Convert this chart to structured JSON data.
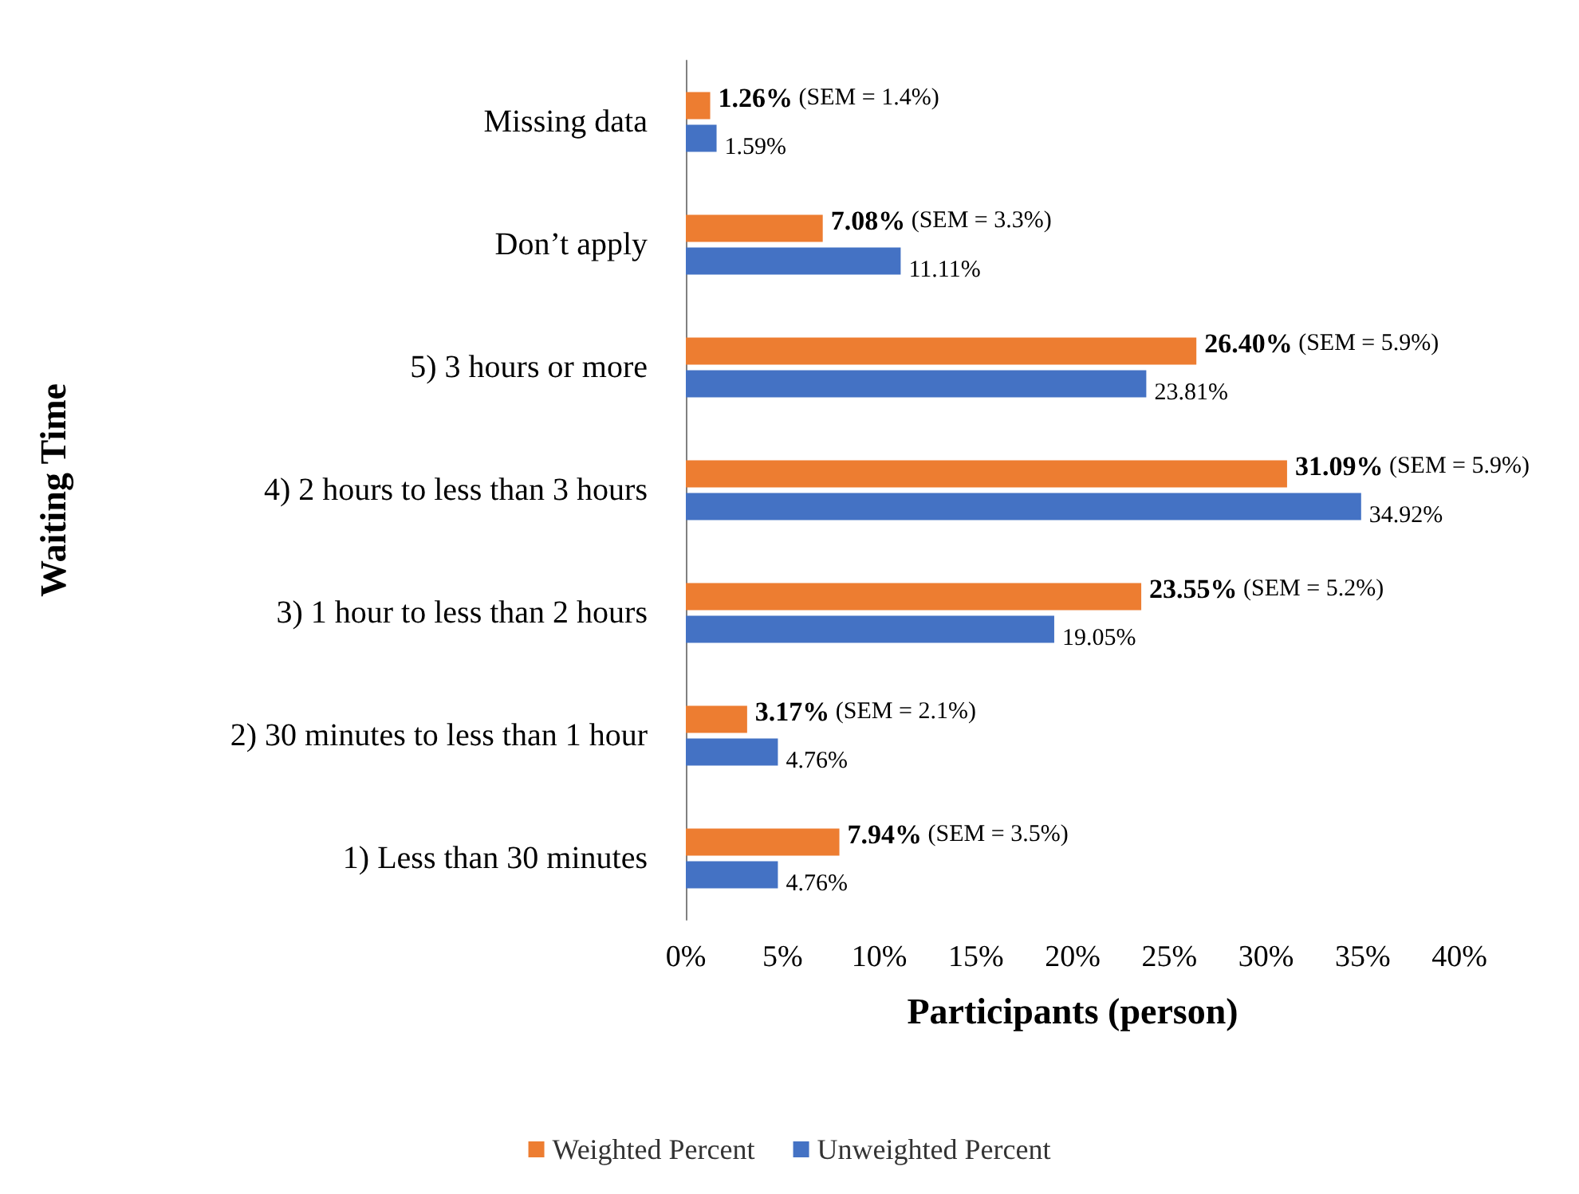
{
  "chart_data": {
    "type": "bar",
    "orientation": "horizontal",
    "xlabel": "Participants (person)",
    "ylabel": "Waiting Time",
    "categories": [
      "Missing data",
      "Don’t apply",
      "5) 3 hours or more",
      "4) 2 hours to less than 3 hours",
      "3) 1 hour to less than 2 hours",
      "2) 30 minutes to less than 1 hour",
      "1) Less than 30 minutes"
    ],
    "series": [
      {
        "name": "Weighted Percent",
        "color": "#ed7d31",
        "values": [
          1.26,
          7.08,
          26.4,
          31.09,
          23.55,
          3.17,
          7.94
        ],
        "value_labels": [
          "1.26% (SEM = 1.4%)",
          "7.08% (SEM = 3.3%)",
          "26.40% (SEM = 5.9%)",
          "31.09% (SEM = 5.9%)",
          "23.55% (SEM = 5.2%)",
          "3.17% (SEM = 2.1%)",
          "7.94% (SEM = 3.5%)"
        ]
      },
      {
        "name": "Unweighted Percent",
        "color": "#4472c4",
        "values": [
          1.59,
          11.11,
          23.81,
          34.92,
          19.05,
          4.76,
          4.76
        ],
        "value_labels": [
          "1.59%",
          "11.11%",
          "23.81%",
          "34.92%",
          "19.05%",
          "4.76%",
          "4.76%"
        ]
      }
    ],
    "xlim": [
      0,
      40
    ],
    "xticks": [
      {
        "value": 0,
        "label": "0%"
      },
      {
        "value": 5,
        "label": "5%"
      },
      {
        "value": 10,
        "label": "10%"
      },
      {
        "value": 15,
        "label": "15%"
      },
      {
        "value": 20,
        "label": "20%"
      },
      {
        "value": 25,
        "label": "25%"
      },
      {
        "value": 30,
        "label": "30%"
      },
      {
        "value": 35,
        "label": "35%"
      },
      {
        "value": 40,
        "label": "40%"
      }
    ],
    "grid": false,
    "legend": "bottom"
  }
}
